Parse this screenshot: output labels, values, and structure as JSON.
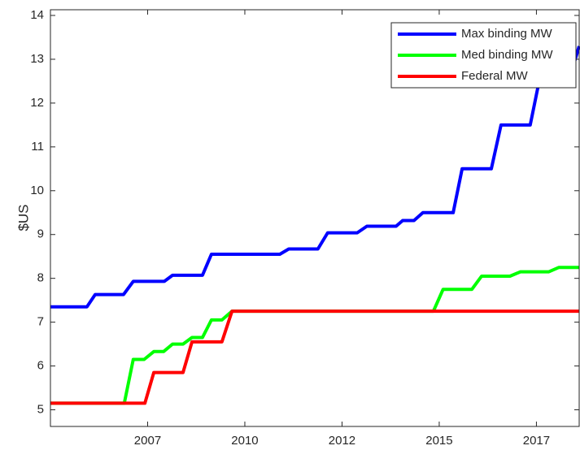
{
  "chart_data": {
    "type": "line",
    "y_label": "$US",
    "xlim": [
      2005.0,
      2018.6
    ],
    "xticks": [
      {
        "value": 2007.5,
        "label": "2007"
      },
      {
        "value": 2010,
        "label": "2010"
      },
      {
        "value": 2012.5,
        "label": "2012"
      },
      {
        "value": 2015,
        "label": "2015"
      },
      {
        "value": 2017.5,
        "label": "2017"
      }
    ],
    "ylim": [
      4.62,
      14.13
    ],
    "yticks": [
      5,
      6,
      7,
      8,
      9,
      10,
      11,
      12,
      13,
      14
    ],
    "legend": "upper right",
    "series": [
      {
        "name": "Max binding MW",
        "color": "#0000ff",
        "x": [
          2005.0,
          2005.94,
          2006.15,
          2006.88,
          2007.13,
          2007.93,
          2008.14,
          2008.91,
          2009.14,
          2010.9,
          2011.13,
          2011.88,
          2012.13,
          2012.89,
          2013.14,
          2013.89,
          2014.06,
          2014.35,
          2014.58,
          2015.36,
          2015.59,
          2016.34,
          2016.59,
          2017.34,
          2017.57,
          2018.33,
          2018.6
        ],
        "values": [
          7.35,
          7.35,
          7.63,
          7.63,
          7.93,
          7.93,
          8.07,
          8.07,
          8.55,
          8.55,
          8.67,
          8.67,
          9.04,
          9.04,
          9.19,
          9.19,
          9.32,
          9.32,
          9.5,
          9.5,
          10.5,
          10.5,
          11.5,
          11.5,
          12.5,
          12.5,
          13.3
        ]
      },
      {
        "name": "Med binding MW",
        "color": "#00ff00",
        "x": [
          2005.0,
          2006.9,
          2007.13,
          2007.41,
          2007.66,
          2007.91,
          2008.14,
          2008.41,
          2008.64,
          2008.91,
          2009.14,
          2009.41,
          2009.67,
          2014.85,
          2015.1,
          2015.84,
          2016.09,
          2016.82,
          2017.09,
          2017.82,
          2018.08,
          2018.6
        ],
        "values": [
          5.15,
          5.15,
          6.15,
          6.15,
          6.33,
          6.33,
          6.5,
          6.5,
          6.65,
          6.65,
          7.05,
          7.05,
          7.25,
          7.25,
          7.75,
          7.75,
          8.05,
          8.05,
          8.15,
          8.15,
          8.25,
          8.25
        ]
      },
      {
        "name": "Federal MW",
        "color": "#ff0000",
        "x": [
          2005.0,
          2007.43,
          2007.66,
          2008.41,
          2008.64,
          2009.41,
          2009.67,
          2018.6
        ],
        "values": [
          5.15,
          5.15,
          5.85,
          5.85,
          6.55,
          6.55,
          7.25,
          7.25
        ]
      }
    ]
  }
}
